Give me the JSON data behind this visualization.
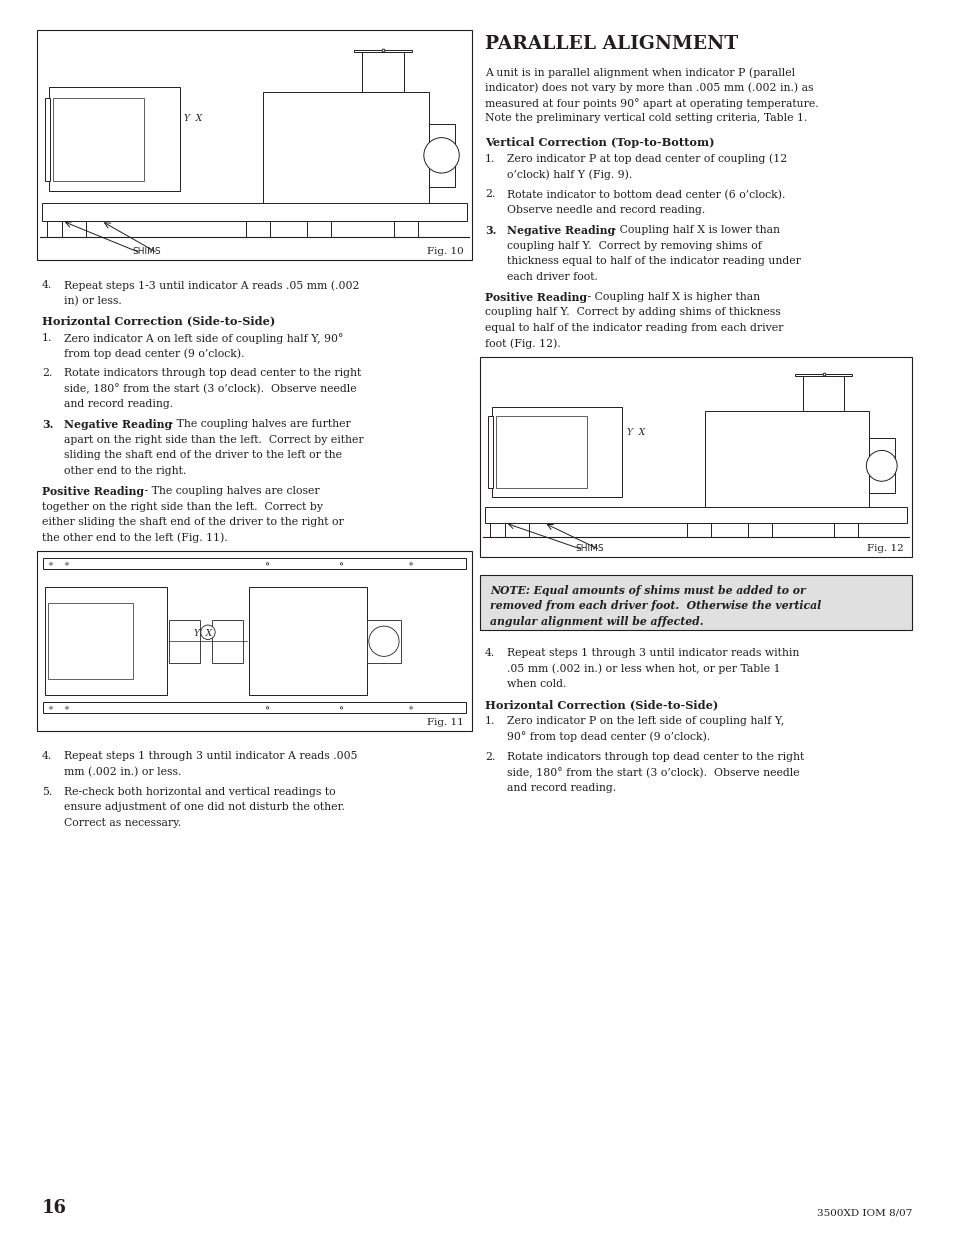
{
  "page_bg": "#ffffff",
  "text_color": "#231f20",
  "page_width": 9.54,
  "page_height": 12.35,
  "title": "PARALLEL ALIGNMENT",
  "intro_text": "A unit is in parallel alignment when indicator P (parallel\nindicator) does not vary by more than .005 mm (.002 in.) as\nmeasured at four points 90° apart at operating temperature.\nNote the preliminary vertical cold setting criteria, Table 1.",
  "page_number": "16",
  "footer_right": "3500XD IOM 8/07"
}
